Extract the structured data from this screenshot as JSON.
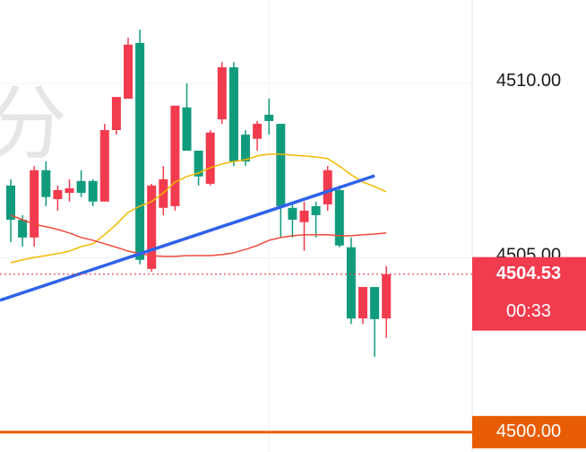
{
  "chart_data": {
    "type": "candlestick",
    "watermark": "分",
    "up_color": "#f23b4e",
    "down_color": "#119b7d",
    "open": [
      4507.07,
      4506.09,
      4505.58,
      4507.51,
      4506.68,
      4506.86,
      4507.2,
      4507.2,
      4506.61,
      4508.66,
      4509.56,
      4511.16,
      4504.68,
      4506.43,
      4506.48,
      4509.31,
      4508.07,
      4507.12,
      4508.97,
      4510.46,
      4508.53,
      4508.41,
      4509.1,
      4508.84,
      4506.43,
      4506.02,
      4506.48,
      4506.53,
      4506.94,
      4505.3,
      4503.26,
      4504.16,
      4503.26
    ],
    "high": [
      4507.25,
      4506.22,
      4507.63,
      4507.76,
      4507.07,
      4507.25,
      4507.51,
      4507.25,
      4508.84,
      4509.61,
      4511.31,
      4511.54,
      4507.12,
      4507.63,
      4509.36,
      4510.0,
      4508.07,
      4508.66,
      4510.61,
      4510.61,
      4508.66,
      4508.92,
      4509.56,
      4508.84,
      4506.61,
      4506.61,
      4506.61,
      4507.63,
      4507.07,
      4505.58,
      4504.16,
      4504.16,
      4504.76
    ],
    "low": [
      4505.45,
      4505.32,
      4505.32,
      4506.48,
      4506.35,
      4506.61,
      4506.74,
      4506.48,
      4506.61,
      4508.53,
      4509.56,
      4504.81,
      4504.6,
      4506.22,
      4506.35,
      4508.07,
      4507.07,
      4507.07,
      4508.84,
      4507.63,
      4507.63,
      4508.07,
      4508.53,
      4505.58,
      4505.58,
      4505.2,
      4505.58,
      4506.35,
      4505.3,
      4503.1,
      4503.1,
      4502.16,
      4502.7
    ],
    "close": [
      4506.09,
      4505.58,
      4507.51,
      4506.74,
      4506.94,
      4506.99,
      4506.86,
      4506.61,
      4508.66,
      4509.61,
      4511.11,
      4504.94,
      4507.07,
      4507.25,
      4509.36,
      4508.07,
      4507.33,
      4508.59,
      4510.46,
      4507.76,
      4507.76,
      4508.84,
      4508.92,
      4506.48,
      4506.09,
      4506.35,
      4506.22,
      4507.51,
      4505.35,
      4503.26,
      4504.16,
      4503.24,
      4504.53
    ],
    "series": [
      {
        "color": "#f5b800",
        "values": [
          4504.86,
          4504.94,
          4505.01,
          4505.06,
          4505.12,
          4505.19,
          4505.32,
          4505.4,
          4505.66,
          4505.96,
          4506.3,
          4506.48,
          4506.61,
          4506.86,
          4507.17,
          4507.33,
          4507.43,
          4507.58,
          4507.69,
          4507.76,
          4507.81,
          4507.92,
          4507.97,
          4507.97,
          4507.94,
          4507.92,
          4507.89,
          4507.84,
          4507.63,
          4507.38,
          4507.17,
          4507.04,
          4506.89
        ]
      },
      {
        "color": "#ee4a3a",
        "values": [
          4506.22,
          4506.09,
          4505.96,
          4505.89,
          4505.81,
          4505.71,
          4505.58,
          4505.5,
          4505.4,
          4505.3,
          4505.19,
          4505.12,
          4505.06,
          4505.04,
          4505.04,
          4505.06,
          4505.06,
          4505.06,
          4505.09,
          4505.14,
          4505.24,
          4505.35,
          4505.5,
          4505.58,
          4505.63,
          4505.66,
          4505.66,
          4505.66,
          4505.63,
          4505.63,
          4505.66,
          4505.68,
          4505.71
        ]
      }
    ],
    "trendline": {
      "color": "#2f62ea",
      "x": [
        -0.92,
        31
      ],
      "y": [
        4503.78,
        4507.35
      ]
    },
    "current_price": 4504.53,
    "current_color": "#f23b4e",
    "countdown": "00:33",
    "level": {
      "value": 4500,
      "label": "4500.00"
    },
    "level_color": "#e85d04",
    "ylim": [
      4499.43,
      4512.39
    ],
    "yticks": [
      {
        "value": 4510,
        "label": "4510.00"
      },
      {
        "value": 4505,
        "label": "4505.00"
      }
    ],
    "grid": true
  }
}
